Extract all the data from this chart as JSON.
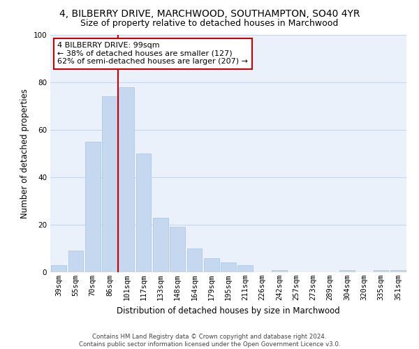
{
  "title1": "4, BILBERRY DRIVE, MARCHWOOD, SOUTHAMPTON, SO40 4YR",
  "title2": "Size of property relative to detached houses in Marchwood",
  "xlabel": "Distribution of detached houses by size in Marchwood",
  "ylabel": "Number of detached properties",
  "categories": [
    "39sqm",
    "55sqm",
    "70sqm",
    "86sqm",
    "101sqm",
    "117sqm",
    "133sqm",
    "148sqm",
    "164sqm",
    "179sqm",
    "195sqm",
    "211sqm",
    "226sqm",
    "242sqm",
    "257sqm",
    "273sqm",
    "289sqm",
    "304sqm",
    "320sqm",
    "335sqm",
    "351sqm"
  ],
  "values": [
    3,
    9,
    55,
    74,
    78,
    50,
    23,
    19,
    10,
    6,
    4,
    3,
    0,
    1,
    0,
    0,
    0,
    1,
    0,
    1,
    1
  ],
  "bar_color": "#c5d8f0",
  "bar_edge_color": "#a8c4e0",
  "vline_x_index": 3.5,
  "vline_color": "#cc0000",
  "annotation_text": "4 BILBERRY DRIVE: 99sqm\n← 38% of detached houses are smaller (127)\n62% of semi-detached houses are larger (207) →",
  "annotation_box_facecolor": "#ffffff",
  "annotation_box_edgecolor": "#cc0000",
  "grid_color": "#c8d8ea",
  "background_color": "#eaf1fb",
  "footer": "Contains HM Land Registry data © Crown copyright and database right 2024.\nContains public sector information licensed under the Open Government Licence v3.0.",
  "ylim": [
    0,
    100
  ],
  "title1_fontsize": 10,
  "title2_fontsize": 9,
  "xlabel_fontsize": 8.5,
  "ylabel_fontsize": 8.5,
  "tick_fontsize": 7.5,
  "annotation_fontsize": 8
}
